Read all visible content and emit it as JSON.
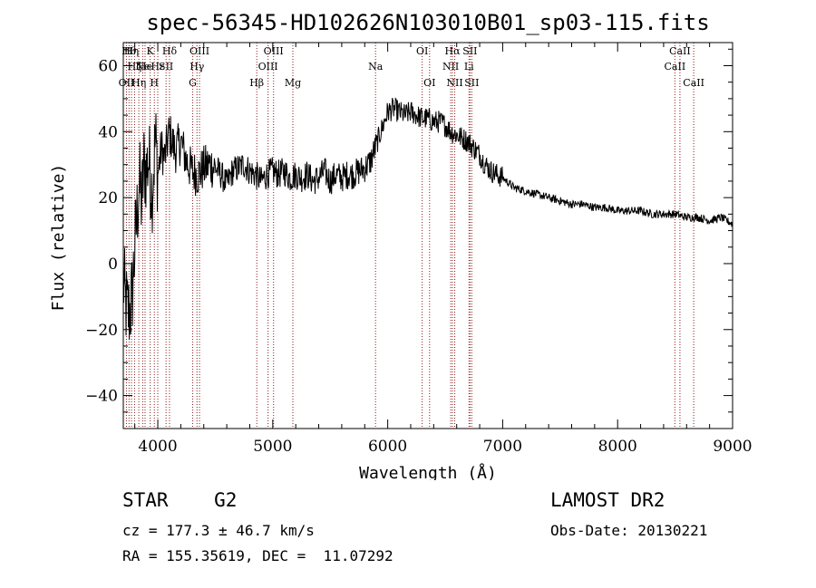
{
  "chart_data": {
    "type": "line",
    "title": "spec-56345-HD102626N103010B01_sp03-115.fits",
    "xlabel": "Wavelength (Å)",
    "ylabel": "Flux (relative)",
    "xlim": [
      3700,
      9000
    ],
    "ylim": [
      -50,
      67
    ],
    "x_ticks": [
      4000,
      5000,
      6000,
      7000,
      8000,
      9000
    ],
    "y_ticks": [
      -40,
      -20,
      0,
      20,
      40,
      60
    ],
    "x_tick_labels": [
      "4000",
      "5000",
      "6000",
      "7000",
      "8000",
      "9000"
    ],
    "y_tick_labels": [
      "−40",
      "−20",
      "0",
      "20",
      "40",
      "60"
    ],
    "grid": false,
    "line_color": "#000000",
    "marker_color": "#8b1a1a",
    "series": [
      {
        "values": [
          {
            "x": 3700,
            "y": -5
          },
          {
            "x": 3720,
            "y": -12
          },
          {
            "x": 3740,
            "y": -15
          },
          {
            "x": 3760,
            "y": -14
          },
          {
            "x": 3780,
            "y": -8
          },
          {
            "x": 3800,
            "y": 5
          },
          {
            "x": 3820,
            "y": 15
          },
          {
            "x": 3840,
            "y": 25
          },
          {
            "x": 3860,
            "y": 18
          },
          {
            "x": 3880,
            "y": 30
          },
          {
            "x": 3900,
            "y": 28
          },
          {
            "x": 3920,
            "y": 32
          },
          {
            "x": 3950,
            "y": 22
          },
          {
            "x": 3980,
            "y": 38
          },
          {
            "x": 4000,
            "y": 27
          },
          {
            "x": 4030,
            "y": 35
          },
          {
            "x": 4060,
            "y": 32
          },
          {
            "x": 4100,
            "y": 40
          },
          {
            "x": 4150,
            "y": 34
          },
          {
            "x": 4200,
            "y": 37
          },
          {
            "x": 4250,
            "y": 31
          },
          {
            "x": 4300,
            "y": 28
          },
          {
            "x": 4350,
            "y": 27
          },
          {
            "x": 4400,
            "y": 29
          },
          {
            "x": 4450,
            "y": 30
          },
          {
            "x": 4500,
            "y": 29
          },
          {
            "x": 4550,
            "y": 27
          },
          {
            "x": 4600,
            "y": 24
          },
          {
            "x": 4650,
            "y": 28
          },
          {
            "x": 4700,
            "y": 29
          },
          {
            "x": 4750,
            "y": 30
          },
          {
            "x": 4800,
            "y": 28
          },
          {
            "x": 4850,
            "y": 27
          },
          {
            "x": 4900,
            "y": 25
          },
          {
            "x": 4950,
            "y": 27
          },
          {
            "x": 5000,
            "y": 28
          },
          {
            "x": 5050,
            "y": 27
          },
          {
            "x": 5100,
            "y": 28
          },
          {
            "x": 5150,
            "y": 26
          },
          {
            "x": 5200,
            "y": 27
          },
          {
            "x": 5250,
            "y": 26
          },
          {
            "x": 5300,
            "y": 27
          },
          {
            "x": 5350,
            "y": 25
          },
          {
            "x": 5400,
            "y": 26
          },
          {
            "x": 5450,
            "y": 28
          },
          {
            "x": 5500,
            "y": 25
          },
          {
            "x": 5550,
            "y": 27
          },
          {
            "x": 5600,
            "y": 26
          },
          {
            "x": 5650,
            "y": 27
          },
          {
            "x": 5700,
            "y": 27
          },
          {
            "x": 5750,
            "y": 28
          },
          {
            "x": 5800,
            "y": 29
          },
          {
            "x": 5850,
            "y": 31
          },
          {
            "x": 5900,
            "y": 36
          },
          {
            "x": 5950,
            "y": 41
          },
          {
            "x": 6000,
            "y": 46
          },
          {
            "x": 6050,
            "y": 47
          },
          {
            "x": 6100,
            "y": 46
          },
          {
            "x": 6150,
            "y": 45
          },
          {
            "x": 6200,
            "y": 46
          },
          {
            "x": 6250,
            "y": 45
          },
          {
            "x": 6300,
            "y": 44
          },
          {
            "x": 6350,
            "y": 44
          },
          {
            "x": 6400,
            "y": 43
          },
          {
            "x": 6450,
            "y": 43
          },
          {
            "x": 6500,
            "y": 42
          },
          {
            "x": 6550,
            "y": 40
          },
          {
            "x": 6600,
            "y": 39
          },
          {
            "x": 6650,
            "y": 38
          },
          {
            "x": 6700,
            "y": 37
          },
          {
            "x": 6750,
            "y": 35
          },
          {
            "x": 6800,
            "y": 33
          },
          {
            "x": 6850,
            "y": 30
          },
          {
            "x": 6900,
            "y": 28
          },
          {
            "x": 6950,
            "y": 27
          },
          {
            "x": 7000,
            "y": 26
          },
          {
            "x": 7100,
            "y": 23
          },
          {
            "x": 7200,
            "y": 22
          },
          {
            "x": 7300,
            "y": 21
          },
          {
            "x": 7400,
            "y": 20
          },
          {
            "x": 7500,
            "y": 19
          },
          {
            "x": 7600,
            "y": 18
          },
          {
            "x": 7700,
            "y": 18
          },
          {
            "x": 7800,
            "y": 17
          },
          {
            "x": 7900,
            "y": 17
          },
          {
            "x": 8000,
            "y": 16
          },
          {
            "x": 8100,
            "y": 16
          },
          {
            "x": 8200,
            "y": 16
          },
          {
            "x": 8300,
            "y": 15
          },
          {
            "x": 8400,
            "y": 15
          },
          {
            "x": 8500,
            "y": 15
          },
          {
            "x": 8600,
            "y": 14
          },
          {
            "x": 8700,
            "y": 14
          },
          {
            "x": 8800,
            "y": 13
          },
          {
            "x": 8900,
            "y": 14
          },
          {
            "x": 9000,
            "y": 12
          }
        ]
      }
    ],
    "lines": [
      {
        "x": 3727,
        "label": "OII",
        "row": 2
      },
      {
        "x": 3750,
        "label": "Hθ",
        "row": 0
      },
      {
        "x": 3771,
        "label": "Hη",
        "row": 0
      },
      {
        "x": 3798,
        "label": "Hζ",
        "row": 1
      },
      {
        "x": 3835,
        "label": "Hη",
        "row": 2
      },
      {
        "x": 3869,
        "label": "Ne",
        "row": 1
      },
      {
        "x": 3889,
        "label": "He",
        "row": 1
      },
      {
        "x": 3934,
        "label": "K",
        "row": 0
      },
      {
        "x": 3970,
        "label": "H",
        "row": 2
      },
      {
        "x": 4000,
        "label": "Hε",
        "row": 1
      },
      {
        "x": 4072,
        "label": "SII",
        "row": 1
      },
      {
        "x": 4102,
        "label": "Hδ",
        "row": 0
      },
      {
        "x": 4304,
        "label": "G",
        "row": 2
      },
      {
        "x": 4341,
        "label": "Hγ",
        "row": 1
      },
      {
        "x": 4363,
        "label": "OIII",
        "row": 0
      },
      {
        "x": 4861,
        "label": "Hβ",
        "row": 2
      },
      {
        "x": 4959,
        "label": "OIII",
        "row": 1
      },
      {
        "x": 5007,
        "label": "OIII",
        "row": 0
      },
      {
        "x": 5175,
        "label": "Mg",
        "row": 2
      },
      {
        "x": 5894,
        "label": "Na",
        "row": 1
      },
      {
        "x": 6300,
        "label": "OI",
        "row": 0
      },
      {
        "x": 6364,
        "label": "OI",
        "row": 2
      },
      {
        "x": 6548,
        "label": "NII",
        "row": 1
      },
      {
        "x": 6563,
        "label": "Hα",
        "row": 0
      },
      {
        "x": 6583,
        "label": "NII",
        "row": 2
      },
      {
        "x": 6707,
        "label": "Li",
        "row": 1
      },
      {
        "x": 6716,
        "label": "SII",
        "row": 0
      },
      {
        "x": 6731,
        "label": "SII",
        "row": 2
      },
      {
        "x": 8498,
        "label": "CaII",
        "row": 1
      },
      {
        "x": 8542,
        "label": "CaII",
        "row": 0
      },
      {
        "x": 8662,
        "label": "CaII",
        "row": 2
      }
    ]
  },
  "footer": {
    "object": "STAR    G2",
    "redshift": "cz = 177.3 ± 46.7 km/s",
    "coords": "RA = 155.35619, DEC =  11.07292",
    "survey": "LAMOST DR2",
    "obs_date": "Obs-Date: 20130221"
  }
}
